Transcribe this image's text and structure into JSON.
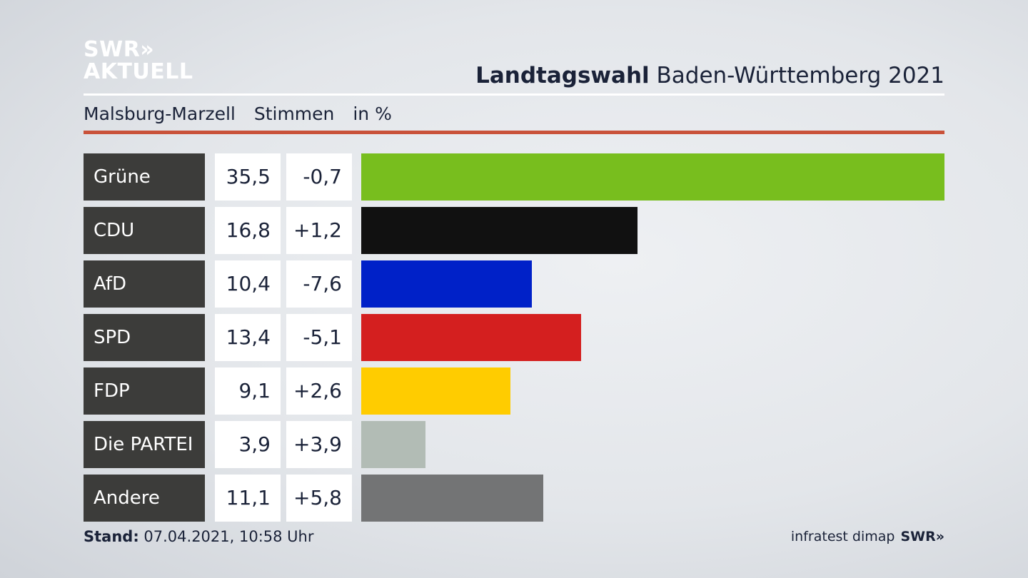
{
  "branding": {
    "logo_line1": "SWR»",
    "logo_line2": "AKTUELL",
    "footer_logo": "SWR»",
    "source": "infratest dimap"
  },
  "header": {
    "title_bold": "Landtagswahl",
    "title_rest": " Baden-Württemberg 2021",
    "location": "Malsburg-Marzell",
    "measure": "Stimmen",
    "unit": "in %"
  },
  "footer": {
    "stand_label": "Stand:",
    "stand_value": " 07.04.2021, 10:58 Uhr"
  },
  "chart_data": {
    "type": "bar",
    "orientation": "horizontal",
    "categories": [
      "Grüne",
      "CDU",
      "AfD",
      "SPD",
      "FDP",
      "Die PARTEI",
      "Andere"
    ],
    "values": [
      35.5,
      16.8,
      10.4,
      13.4,
      9.1,
      3.9,
      11.1
    ],
    "value_labels": [
      "35,5",
      "16,8",
      "10,4",
      "13,4",
      "9,1",
      "3,9",
      "11,1"
    ],
    "change_labels": [
      "-0,7",
      "+1,2",
      "-7,6",
      "-5,1",
      "+2,6",
      "+3,9",
      "+5,8"
    ],
    "colors": [
      "#78be1e",
      "#111111",
      "#0021c8",
      "#d41f1f",
      "#ffcc00",
      "#b2bcb5",
      "#737475"
    ],
    "xlim": [
      0,
      35.5
    ]
  }
}
